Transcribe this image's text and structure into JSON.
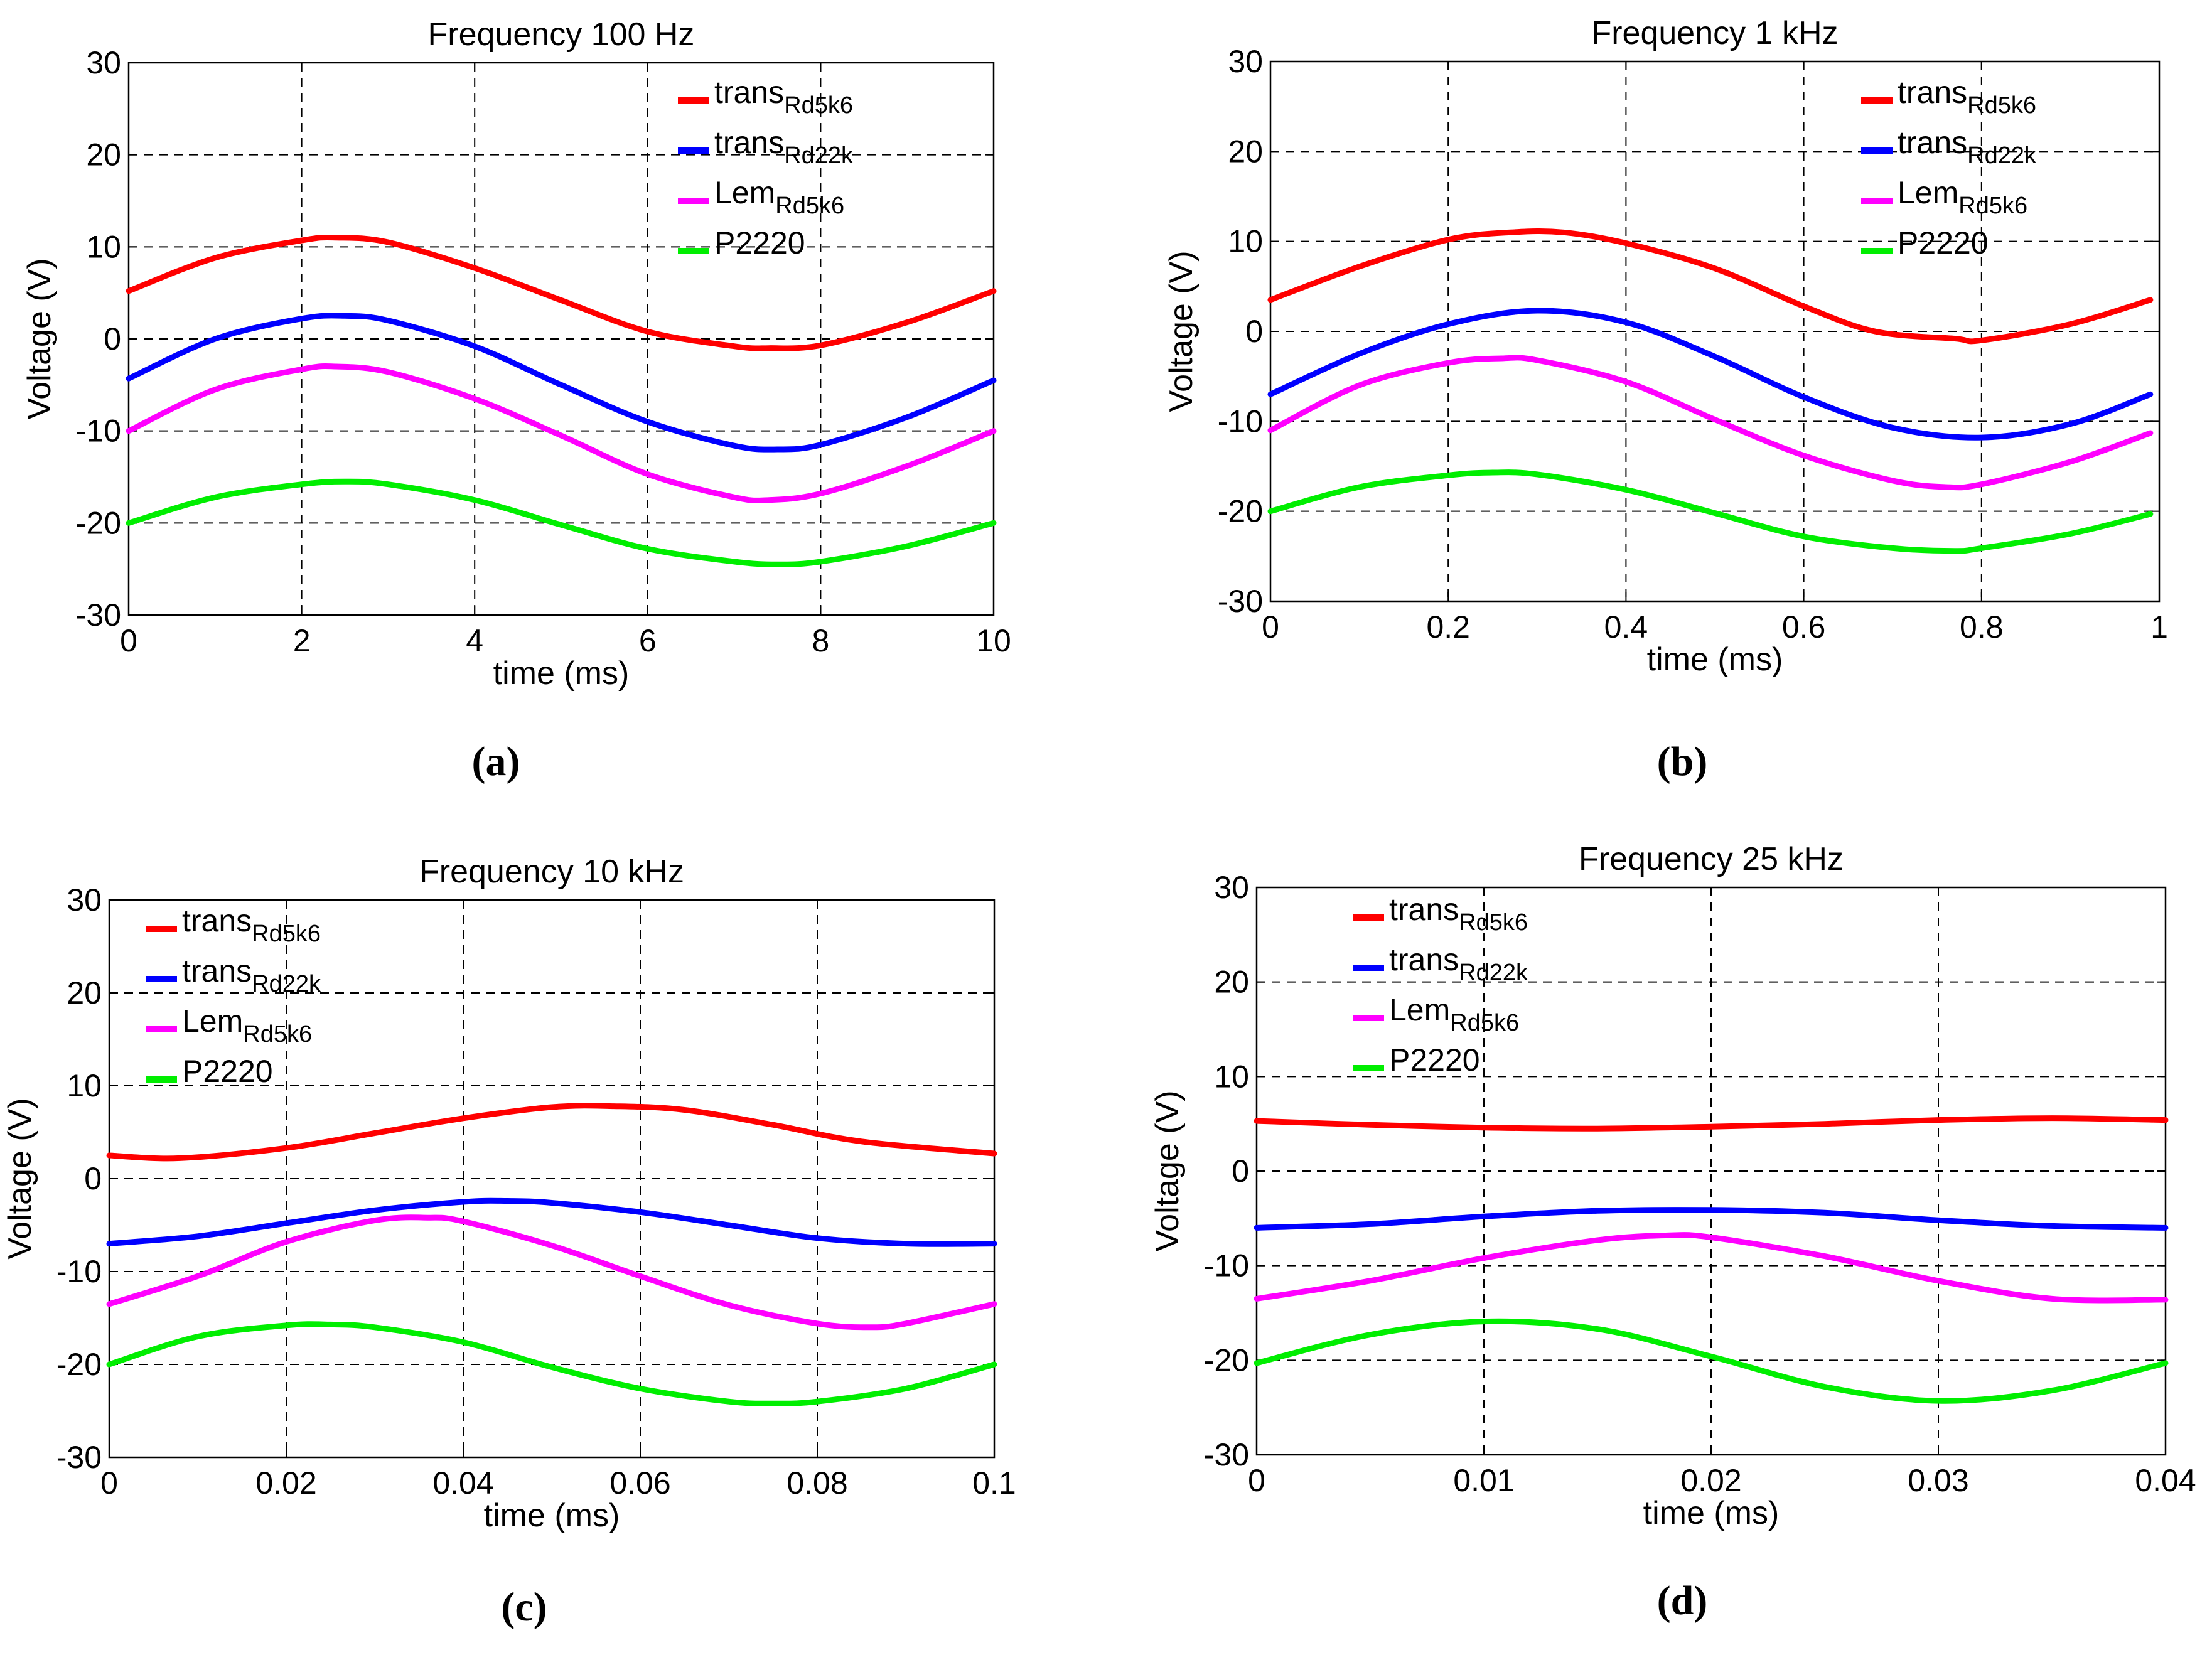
{
  "chart_data": [
    {
      "type": "line",
      "panel_label": "(a)",
      "title": "Frequency 100 Hz",
      "xlabel": "time   (ms)",
      "ylabel": "Voltage   (V)",
      "xlim": [
        0,
        10
      ],
      "ylim": [
        -30,
        30
      ],
      "xticks": [
        0,
        2,
        4,
        6,
        8,
        10
      ],
      "xtick_labels": [
        "0",
        "2",
        "4",
        "6",
        "8",
        "10"
      ],
      "yticks": [
        -30,
        -20,
        -10,
        0,
        10,
        20,
        30
      ],
      "ytick_labels": [
        "-30",
        "-20",
        "-10",
        "0",
        "10",
        "20",
        "30"
      ],
      "grid": true,
      "legend_position": "top-right",
      "series": [
        {
          "name": "trans",
          "subscript": "Rd5k6",
          "color": "#ff0000",
          "x": [
            0,
            1,
            2,
            2.4,
            3,
            4,
            5,
            6,
            7,
            7.4,
            8,
            9,
            10
          ],
          "values": [
            5.2,
            8.8,
            10.7,
            11,
            10.5,
            7.7,
            4.2,
            0.8,
            -0.8,
            -1,
            -0.7,
            1.8,
            5.2
          ]
        },
        {
          "name": "trans",
          "subscript": "Rd22k",
          "color": "#0000ff",
          "x": [
            0,
            1,
            2,
            2.5,
            3,
            4,
            5,
            6,
            7,
            7.5,
            8,
            9,
            10
          ],
          "values": [
            -4.3,
            0,
            2.2,
            2.5,
            2,
            -0.8,
            -5,
            -9,
            -11.6,
            -12,
            -11.5,
            -8.5,
            -4.5
          ]
        },
        {
          "name": "Lem",
          "subscript": "Rd5k6",
          "color": "#ff00ff",
          "x": [
            0,
            1,
            2,
            2.4,
            3,
            4,
            5,
            6,
            7,
            7.4,
            8,
            9,
            10
          ],
          "values": [
            -10,
            -5.5,
            -3.3,
            -3,
            -3.6,
            -6.5,
            -10.5,
            -14.7,
            -17.2,
            -17.5,
            -16.8,
            -13.8,
            -10
          ]
        },
        {
          "name": "P2220",
          "subscript": "",
          "color": "#00ee00",
          "x": [
            0,
            1,
            2,
            2.5,
            3,
            4,
            5,
            6,
            7,
            7.5,
            8,
            9,
            10
          ],
          "values": [
            -20,
            -17.2,
            -15.8,
            -15.5,
            -15.8,
            -17.5,
            -20.2,
            -22.8,
            -24.2,
            -24.5,
            -24.2,
            -22.5,
            -20
          ]
        }
      ]
    },
    {
      "type": "line",
      "panel_label": "(b)",
      "title": "Frequency 1 kHz",
      "xlabel": "time   (ms)",
      "ylabel": "Voltage   (V)",
      "xlim": [
        0,
        1
      ],
      "ylim": [
        -30,
        30
      ],
      "xticks": [
        0,
        0.2,
        0.4,
        0.6,
        0.8,
        1
      ],
      "xtick_labels": [
        "0",
        "0.2",
        "0.4",
        "0.6",
        "0.8",
        "1"
      ],
      "yticks": [
        -30,
        -20,
        -10,
        0,
        10,
        20,
        30
      ],
      "ytick_labels": [
        "-30",
        "-20",
        "-10",
        "0",
        "10",
        "20",
        "30"
      ],
      "grid": true,
      "legend_position": "top-right",
      "series": [
        {
          "name": "trans",
          "subscript": "Rd5k6",
          "color": "#ff0000",
          "x": [
            0,
            0.1,
            0.2,
            0.27,
            0.33,
            0.4,
            0.5,
            0.6,
            0.68,
            0.77,
            0.8,
            0.9,
            0.99
          ],
          "values": [
            3.5,
            7.2,
            10.2,
            11,
            11,
            9.8,
            7,
            2.8,
            0,
            -0.8,
            -1,
            0.8,
            3.5
          ]
        },
        {
          "name": "trans",
          "subscript": "Rd22k",
          "color": "#0000ff",
          "x": [
            0,
            0.1,
            0.2,
            0.3,
            0.4,
            0.5,
            0.6,
            0.7,
            0.8,
            0.9,
            0.99
          ],
          "values": [
            -7,
            -2.5,
            0.8,
            2.3,
            1,
            -2.8,
            -7.3,
            -10.7,
            -11.8,
            -10.3,
            -7
          ]
        },
        {
          "name": "Lem",
          "subscript": "Rd5k6",
          "color": "#ff00ff",
          "x": [
            0,
            0.1,
            0.2,
            0.26,
            0.3,
            0.4,
            0.5,
            0.6,
            0.7,
            0.76,
            0.8,
            0.9,
            0.99
          ],
          "values": [
            -11,
            -6,
            -3.5,
            -3,
            -3.2,
            -5.6,
            -9.8,
            -13.8,
            -16.6,
            -17.3,
            -17,
            -14.5,
            -11.3
          ]
        },
        {
          "name": "P2220",
          "subscript": "",
          "color": "#00ee00",
          "x": [
            0,
            0.1,
            0.2,
            0.25,
            0.3,
            0.4,
            0.5,
            0.6,
            0.7,
            0.77,
            0.8,
            0.9,
            0.99
          ],
          "values": [
            -20,
            -17.3,
            -16,
            -15.7,
            -15.9,
            -17.6,
            -20.2,
            -22.8,
            -24.1,
            -24.4,
            -24.1,
            -22.5,
            -20.3
          ]
        }
      ]
    },
    {
      "type": "line",
      "panel_label": "(c)",
      "title": "Frequency 10 kHz",
      "xlabel": "time   (ms)",
      "ylabel": "Voltage   (V)",
      "xlim": [
        0,
        0.1
      ],
      "ylim": [
        -30,
        30
      ],
      "xticks": [
        0,
        0.02,
        0.04,
        0.06,
        0.08,
        0.1
      ],
      "xtick_labels": [
        "0",
        "0.02",
        "0.04",
        "0.06",
        "0.08",
        "0.1"
      ],
      "yticks": [
        -30,
        -20,
        -10,
        0,
        10,
        20,
        30
      ],
      "ytick_labels": [
        "-30",
        "-20",
        "-10",
        "0",
        "10",
        "20",
        "30"
      ],
      "grid": true,
      "legend_position": "top-left",
      "series": [
        {
          "name": "trans",
          "subscript": "Rd5k6",
          "color": "#ff0000",
          "x": [
            0,
            0.008,
            0.02,
            0.03,
            0.04,
            0.05,
            0.057,
            0.065,
            0.075,
            0.085,
            0.1
          ],
          "values": [
            2.5,
            2.2,
            3.3,
            4.9,
            6.5,
            7.7,
            7.8,
            7.4,
            5.8,
            4,
            2.7
          ]
        },
        {
          "name": "trans",
          "subscript": "Rd22k",
          "color": "#0000ff",
          "x": [
            0,
            0.01,
            0.02,
            0.03,
            0.04,
            0.045,
            0.05,
            0.06,
            0.07,
            0.08,
            0.09,
            0.1
          ],
          "values": [
            -7,
            -6.2,
            -4.8,
            -3.4,
            -2.5,
            -2.4,
            -2.6,
            -3.6,
            -5,
            -6.4,
            -7,
            -7
          ]
        },
        {
          "name": "Lem",
          "subscript": "Rd5k6",
          "color": "#ff00ff",
          "x": [
            0,
            0.01,
            0.02,
            0.03,
            0.036,
            0.04,
            0.05,
            0.06,
            0.07,
            0.08,
            0.086,
            0.09,
            0.1
          ],
          "values": [
            -13.5,
            -10.5,
            -6.8,
            -4.5,
            -4.2,
            -4.6,
            -7.2,
            -10.5,
            -13.6,
            -15.6,
            -16,
            -15.6,
            -13.5
          ]
        },
        {
          "name": "P2220",
          "subscript": "",
          "color": "#00ee00",
          "x": [
            0,
            0.01,
            0.02,
            0.025,
            0.03,
            0.04,
            0.05,
            0.06,
            0.07,
            0.075,
            0.08,
            0.09,
            0.1
          ],
          "values": [
            -20,
            -17,
            -15.8,
            -15.7,
            -16,
            -17.6,
            -20.3,
            -22.6,
            -24,
            -24.2,
            -24,
            -22.6,
            -20
          ]
        }
      ]
    },
    {
      "type": "line",
      "panel_label": "(d)",
      "title": "Frequency 25 kHz",
      "xlabel": "time   (ms)",
      "ylabel": "Voltage   (V)",
      "xlim": [
        0,
        0.04
      ],
      "ylim": [
        -30,
        30
      ],
      "xticks": [
        0,
        0.01,
        0.02,
        0.03,
        0.04
      ],
      "xtick_labels": [
        "0",
        "0.01",
        "0.02",
        "0.03",
        "0.04"
      ],
      "yticks": [
        -30,
        -20,
        -10,
        0,
        10,
        20,
        30
      ],
      "ytick_labels": [
        "-30",
        "-20",
        "-10",
        "0",
        "10",
        "20",
        "30"
      ],
      "grid": true,
      "legend_position": "top-left",
      "series": [
        {
          "name": "trans",
          "subscript": "Rd5k6",
          "color": "#ff0000",
          "x": [
            0,
            0.005,
            0.01,
            0.015,
            0.02,
            0.025,
            0.03,
            0.035,
            0.04
          ],
          "values": [
            5.3,
            4.9,
            4.6,
            4.5,
            4.7,
            5,
            5.4,
            5.6,
            5.4
          ]
        },
        {
          "name": "trans",
          "subscript": "Rd22k",
          "color": "#0000ff",
          "x": [
            0,
            0.005,
            0.01,
            0.015,
            0.02,
            0.025,
            0.03,
            0.035,
            0.04
          ],
          "values": [
            -6,
            -5.6,
            -4.8,
            -4.2,
            -4.1,
            -4.4,
            -5.2,
            -5.8,
            -6
          ]
        },
        {
          "name": "Lem",
          "subscript": "Rd5k6",
          "color": "#ff00ff",
          "x": [
            0,
            0.005,
            0.01,
            0.015,
            0.018,
            0.02,
            0.025,
            0.03,
            0.035,
            0.04
          ],
          "values": [
            -13.5,
            -11.6,
            -9.2,
            -7.3,
            -6.8,
            -7,
            -9,
            -11.6,
            -13.5,
            -13.6
          ]
        },
        {
          "name": "P2220",
          "subscript": "",
          "color": "#00ee00",
          "x": [
            0,
            0.005,
            0.01,
            0.015,
            0.02,
            0.025,
            0.03,
            0.035,
            0.04
          ],
          "values": [
            -20.3,
            -17.3,
            -15.9,
            -16.7,
            -19.6,
            -22.8,
            -24.3,
            -23.2,
            -20.3
          ]
        }
      ]
    }
  ]
}
